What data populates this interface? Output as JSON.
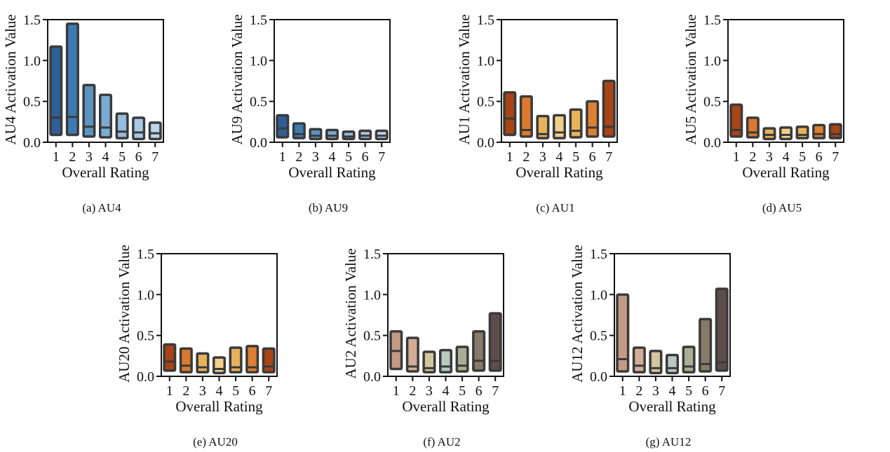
{
  "chart_data": [
    {
      "type": "box",
      "caption": "(a) AU4",
      "xlabel": "Overall Rating",
      "ylabel": "AU4 Activation Value",
      "ylim": [
        0,
        1.5
      ],
      "yticks": [
        "0.0",
        "0.5",
        "1.0",
        "1.5"
      ],
      "categories": [
        "1",
        "2",
        "3",
        "4",
        "5",
        "6",
        "7"
      ],
      "boxes": [
        {
          "low": 0.09,
          "median": 0.3,
          "high": 1.17,
          "color": "#2d5f97"
        },
        {
          "low": 0.09,
          "median": 0.31,
          "high": 1.45,
          "color": "#3d7bb4"
        },
        {
          "low": 0.07,
          "median": 0.19,
          "high": 0.7,
          "color": "#5b94c2"
        },
        {
          "low": 0.06,
          "median": 0.18,
          "high": 0.58,
          "color": "#7aabd3"
        },
        {
          "low": 0.05,
          "median": 0.13,
          "high": 0.35,
          "color": "#95bcdf"
        },
        {
          "low": 0.04,
          "median": 0.12,
          "high": 0.3,
          "color": "#a9c9e6"
        },
        {
          "low": 0.04,
          "median": 0.11,
          "high": 0.24,
          "color": "#bcd6ee"
        }
      ]
    },
    {
      "type": "box",
      "caption": "(b) AU9",
      "xlabel": "Overall Rating",
      "ylabel": "AU9 Activation Value",
      "ylim": [
        0,
        1.5
      ],
      "yticks": [
        "0.0",
        "0.5",
        "1.0",
        "1.5"
      ],
      "categories": [
        "1",
        "2",
        "3",
        "4",
        "5",
        "6",
        "7"
      ],
      "boxes": [
        {
          "low": 0.06,
          "median": 0.17,
          "high": 0.33,
          "color": "#2d5f97"
        },
        {
          "low": 0.05,
          "median": 0.1,
          "high": 0.23,
          "color": "#3d7bb4"
        },
        {
          "low": 0.04,
          "median": 0.08,
          "high": 0.16,
          "color": "#5b94c2"
        },
        {
          "low": 0.04,
          "median": 0.08,
          "high": 0.15,
          "color": "#7aabd3"
        },
        {
          "low": 0.04,
          "median": 0.07,
          "high": 0.13,
          "color": "#95bcdf"
        },
        {
          "low": 0.04,
          "median": 0.08,
          "high": 0.14,
          "color": "#a9c9e6"
        },
        {
          "low": 0.04,
          "median": 0.08,
          "high": 0.14,
          "color": "#bcd6ee"
        }
      ]
    },
    {
      "type": "box",
      "caption": "(c) AU1",
      "xlabel": "Overall Rating",
      "ylabel": "AU1 Activation Value",
      "ylim": [
        0,
        1.5
      ],
      "yticks": [
        "0.0",
        "0.5",
        "1.0",
        "1.5"
      ],
      "categories": [
        "1",
        "2",
        "3",
        "4",
        "5",
        "6",
        "7"
      ],
      "boxes": [
        {
          "low": 0.09,
          "median": 0.29,
          "high": 0.61,
          "color": "#a84416"
        },
        {
          "low": 0.07,
          "median": 0.15,
          "high": 0.56,
          "color": "#db7a2c"
        },
        {
          "low": 0.05,
          "median": 0.1,
          "high": 0.32,
          "color": "#e8b25a"
        },
        {
          "low": 0.05,
          "median": 0.12,
          "high": 0.33,
          "color": "#f2d08a"
        },
        {
          "low": 0.06,
          "median": 0.14,
          "high": 0.4,
          "color": "#e8b25a"
        },
        {
          "low": 0.07,
          "median": 0.18,
          "high": 0.5,
          "color": "#de8032"
        },
        {
          "low": 0.07,
          "median": 0.19,
          "high": 0.75,
          "color": "#a84416"
        }
      ]
    },
    {
      "type": "box",
      "caption": "(d) AU5",
      "xlabel": "Overall Rating",
      "ylabel": "AU5 Activation Value",
      "ylim": [
        0,
        1.5
      ],
      "yticks": [
        "0.0",
        "0.5",
        "1.0",
        "1.5"
      ],
      "categories": [
        "1",
        "2",
        "3",
        "4",
        "5",
        "6",
        "7"
      ],
      "boxes": [
        {
          "low": 0.07,
          "median": 0.15,
          "high": 0.46,
          "color": "#a84416"
        },
        {
          "low": 0.06,
          "median": 0.12,
          "high": 0.3,
          "color": "#db7a2c"
        },
        {
          "low": 0.04,
          "median": 0.09,
          "high": 0.17,
          "color": "#e8b25a"
        },
        {
          "low": 0.04,
          "median": 0.09,
          "high": 0.18,
          "color": "#f2d08a"
        },
        {
          "low": 0.05,
          "median": 0.09,
          "high": 0.19,
          "color": "#e8b25a"
        },
        {
          "low": 0.05,
          "median": 0.1,
          "high": 0.21,
          "color": "#de8032"
        },
        {
          "low": 0.05,
          "median": 0.1,
          "high": 0.22,
          "color": "#a84416"
        }
      ]
    },
    {
      "type": "box",
      "caption": "(e) AU20",
      "xlabel": "Overall Rating",
      "ylabel": "AU20 Activation Value",
      "ylim": [
        0,
        1.5
      ],
      "yticks": [
        "0.0",
        "0.5",
        "1.0",
        "1.5"
      ],
      "categories": [
        "1",
        "2",
        "3",
        "4",
        "5",
        "6",
        "7"
      ],
      "boxes": [
        {
          "low": 0.07,
          "median": 0.18,
          "high": 0.39,
          "color": "#a84416"
        },
        {
          "low": 0.05,
          "median": 0.13,
          "high": 0.34,
          "color": "#db7a2c"
        },
        {
          "low": 0.05,
          "median": 0.11,
          "high": 0.28,
          "color": "#e8b25a"
        },
        {
          "low": 0.04,
          "median": 0.09,
          "high": 0.23,
          "color": "#f2d08a"
        },
        {
          "low": 0.05,
          "median": 0.11,
          "high": 0.35,
          "color": "#e8b25a"
        },
        {
          "low": 0.05,
          "median": 0.11,
          "high": 0.37,
          "color": "#de8032"
        },
        {
          "low": 0.05,
          "median": 0.12,
          "high": 0.34,
          "color": "#a84416"
        }
      ]
    },
    {
      "type": "box",
      "caption": "(f) AU2",
      "xlabel": "Overall Rating",
      "ylabel": "AU2 Activation Value",
      "ylim": [
        0,
        1.5
      ],
      "yticks": [
        "0.0",
        "0.5",
        "1.0",
        "1.5"
      ],
      "categories": [
        "1",
        "2",
        "3",
        "4",
        "5",
        "6",
        "7"
      ],
      "boxes": [
        {
          "low": 0.09,
          "median": 0.31,
          "high": 0.55,
          "color": "#c59a85"
        },
        {
          "low": 0.06,
          "median": 0.12,
          "high": 0.47,
          "color": "#d2ad98"
        },
        {
          "low": 0.05,
          "median": 0.1,
          "high": 0.3,
          "color": "#d4c69c"
        },
        {
          "low": 0.05,
          "median": 0.12,
          "high": 0.32,
          "color": "#b8cbc0"
        },
        {
          "low": 0.06,
          "median": 0.13,
          "high": 0.36,
          "color": "#a9af92"
        },
        {
          "low": 0.07,
          "median": 0.19,
          "high": 0.55,
          "color": "#877a68"
        },
        {
          "low": 0.07,
          "median": 0.19,
          "high": 0.77,
          "color": "#5f4c4c"
        }
      ]
    },
    {
      "type": "box",
      "caption": "(g) AU12",
      "xlabel": "Overall Rating",
      "ylabel": "AU12 Activation Value",
      "ylim": [
        0,
        1.5
      ],
      "yticks": [
        "0.0",
        "0.5",
        "1.0",
        "1.5"
      ],
      "categories": [
        "1",
        "2",
        "3",
        "4",
        "5",
        "6",
        "7"
      ],
      "boxes": [
        {
          "low": 0.06,
          "median": 0.21,
          "high": 1.0,
          "color": "#c59a85"
        },
        {
          "low": 0.05,
          "median": 0.13,
          "high": 0.35,
          "color": "#d2ad98"
        },
        {
          "low": 0.04,
          "median": 0.1,
          "high": 0.31,
          "color": "#d4c69c"
        },
        {
          "low": 0.04,
          "median": 0.1,
          "high": 0.26,
          "color": "#b8cbc0"
        },
        {
          "low": 0.05,
          "median": 0.12,
          "high": 0.36,
          "color": "#a9af92"
        },
        {
          "low": 0.06,
          "median": 0.15,
          "high": 0.7,
          "color": "#877a68"
        },
        {
          "low": 0.07,
          "median": 0.17,
          "high": 1.07,
          "color": "#5f4c4c"
        }
      ]
    }
  ]
}
